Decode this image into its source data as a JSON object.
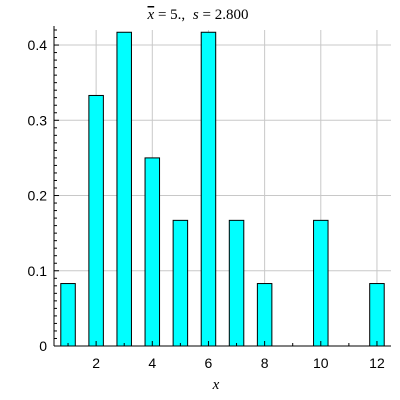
{
  "chart_data": {
    "type": "bar",
    "title": {
      "xbar_symbol": "x",
      "xbar_value": "= 5.,",
      "s_symbol": "s",
      "s_value": "= 2.800"
    },
    "xlabel": "x",
    "ylabel": "",
    "x": [
      1,
      2,
      3,
      4,
      5,
      6,
      7,
      8,
      10,
      12
    ],
    "values": [
      0.083,
      0.333,
      0.417,
      0.25,
      0.167,
      0.417,
      0.167,
      0.083,
      0.167,
      0.083
    ],
    "xlim": [
      0.5,
      12.5
    ],
    "ylim": [
      0,
      0.42
    ],
    "xticks": [
      2,
      4,
      6,
      8,
      10,
      12
    ],
    "yticks": [
      0,
      0.1,
      0.2,
      0.3,
      0.4
    ],
    "xtick_labels": [
      "2",
      "4",
      "6",
      "8",
      "10",
      "12"
    ],
    "ytick_labels": [
      "0",
      "0.1",
      "0.2",
      "0.3",
      "0.4"
    ],
    "bar_color": "#00ffff",
    "grid": true
  }
}
